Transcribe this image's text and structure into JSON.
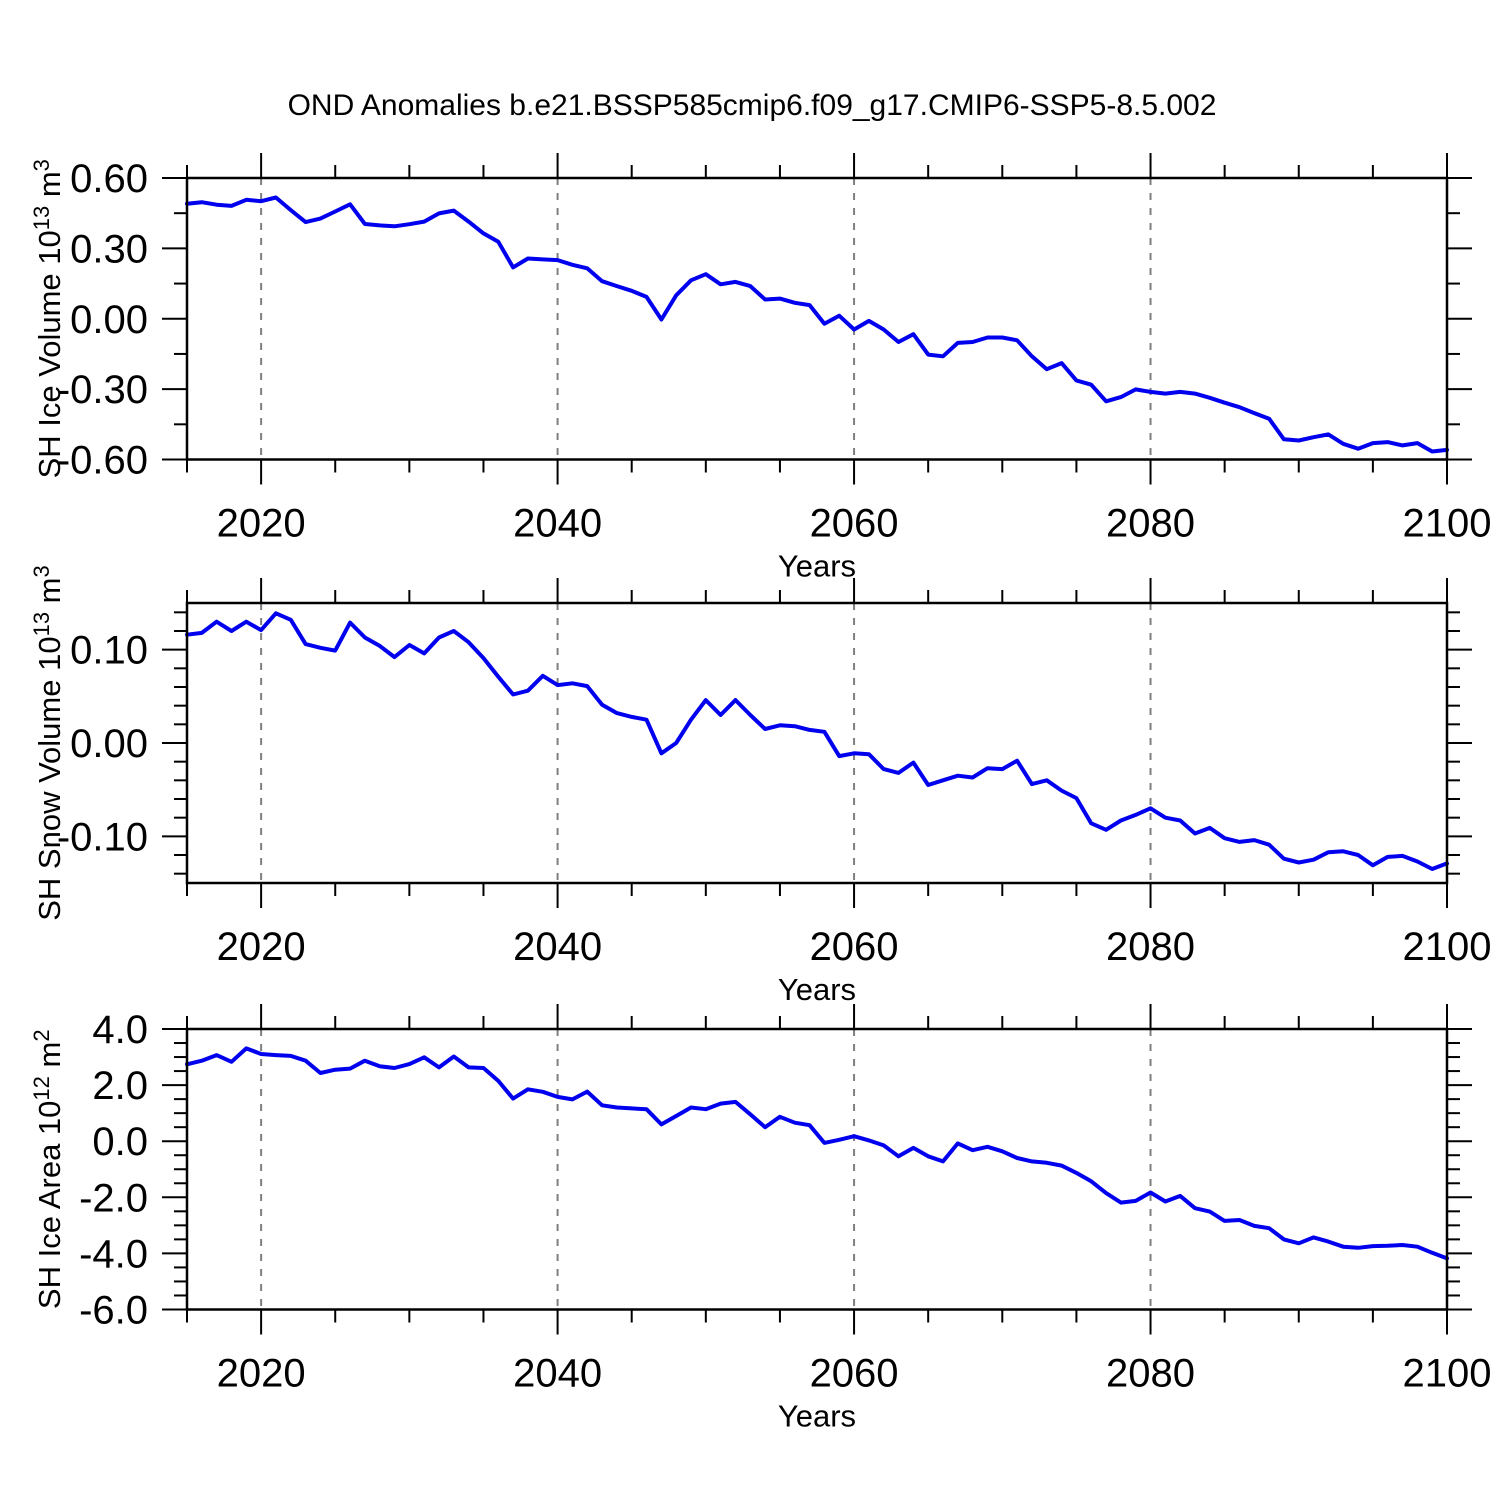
{
  "title": "OND Anomalies b.e21.BSSP585cmip6.f09_g17.CMIP6-SSP5-8.5.002",
  "style": {
    "line_color": "#0000ee",
    "grid_color": "#7f7f7f",
    "axis_color": "#000000",
    "background": "#ffffff"
  },
  "chart_data": {
    "type": "line",
    "title": "OND Anomalies b.e21.BSSP585cmip6.f09_g17.CMIP6-SSP5-8.5.002",
    "xlabel": "Years",
    "xlim": [
      2015,
      2100
    ],
    "x_major_ticks": [
      2020,
      2040,
      2060,
      2080,
      2100
    ],
    "x_tick_labels": [
      "2020",
      "2040",
      "2060",
      "2080",
      "2100"
    ],
    "x_minor_step": 5,
    "grid_x": [
      2020,
      2040,
      2060,
      2080
    ],
    "grid_style": "dashed-vertical",
    "legend": "none",
    "x": [
      2015,
      2016,
      2017,
      2018,
      2019,
      2020,
      2021,
      2022,
      2023,
      2024,
      2025,
      2026,
      2027,
      2028,
      2029,
      2030,
      2031,
      2032,
      2033,
      2034,
      2035,
      2036,
      2037,
      2038,
      2039,
      2040,
      2041,
      2042,
      2043,
      2044,
      2045,
      2046,
      2047,
      2048,
      2049,
      2050,
      2051,
      2052,
      2053,
      2054,
      2055,
      2056,
      2057,
      2058,
      2059,
      2060,
      2061,
      2062,
      2063,
      2064,
      2065,
      2066,
      2067,
      2068,
      2069,
      2070,
      2071,
      2072,
      2073,
      2074,
      2075,
      2076,
      2077,
      2078,
      2079,
      2080,
      2081,
      2082,
      2083,
      2084,
      2085,
      2086,
      2087,
      2088,
      2089,
      2090,
      2091,
      2092,
      2093,
      2094,
      2095,
      2096,
      2097,
      2098,
      2099,
      2100
    ],
    "panels": [
      {
        "name": "sh-ice-volume",
        "ylabel": "SH Ice Volume 10^13 m^3",
        "ylabel_parts": [
          {
            "text": "SH Ice Volume 10",
            "sup": "13"
          },
          {
            "text": " m",
            "sup": "3"
          }
        ],
        "ylim": [
          -0.6,
          0.6
        ],
        "ytick_values": [
          0.6,
          0.3,
          0.0,
          -0.3,
          -0.6
        ],
        "ytick_labels": [
          "0.60",
          "0.30",
          "0.00",
          "-0.30",
          "-0.60"
        ],
        "y_minor_step": 0.15,
        "values": [
          0.49,
          0.497,
          0.486,
          0.481,
          0.507,
          0.501,
          0.517,
          0.463,
          0.412,
          0.427,
          0.457,
          0.488,
          0.404,
          0.398,
          0.394,
          0.403,
          0.414,
          0.449,
          0.461,
          0.414,
          0.364,
          0.328,
          0.219,
          0.257,
          0.253,
          0.25,
          0.23,
          0.215,
          0.16,
          0.139,
          0.119,
          0.093,
          -0.003,
          0.1,
          0.164,
          0.19,
          0.147,
          0.157,
          0.139,
          0.082,
          0.086,
          0.068,
          0.058,
          -0.021,
          0.013,
          -0.046,
          -0.009,
          -0.046,
          -0.099,
          -0.066,
          -0.153,
          -0.16,
          -0.103,
          -0.099,
          -0.08,
          -0.08,
          -0.092,
          -0.16,
          -0.215,
          -0.189,
          -0.263,
          -0.281,
          -0.352,
          -0.334,
          -0.301,
          -0.312,
          -0.319,
          -0.312,
          -0.319,
          -0.337,
          -0.358,
          -0.377,
          -0.402,
          -0.426,
          -0.514,
          -0.519,
          -0.505,
          -0.493,
          -0.533,
          -0.554,
          -0.53,
          -0.526,
          -0.54,
          -0.53,
          -0.566,
          -0.559
        ]
      },
      {
        "name": "sh-snow-volume",
        "ylabel": "SH Snow Volume 10^13 m^3",
        "ylabel_parts": [
          {
            "text": "SH Snow Volume 10",
            "sup": "13"
          },
          {
            "text": " m",
            "sup": "3"
          }
        ],
        "ylim": [
          -0.15,
          0.15
        ],
        "ytick_values": [
          0.1,
          0.0,
          -0.1
        ],
        "ytick_labels": [
          "0.10",
          "0.00",
          "-0.10"
        ],
        "y_minor_step": 0.02,
        "values": [
          0.116,
          0.118,
          0.13,
          0.12,
          0.13,
          0.121,
          0.139,
          0.132,
          0.106,
          0.102,
          0.099,
          0.129,
          0.113,
          0.104,
          0.092,
          0.105,
          0.096,
          0.113,
          0.12,
          0.108,
          0.091,
          0.071,
          0.052,
          0.056,
          0.072,
          0.062,
          0.064,
          0.061,
          0.041,
          0.032,
          0.028,
          0.025,
          -0.011,
          0.0,
          0.025,
          0.046,
          0.03,
          0.046,
          0.03,
          0.015,
          0.019,
          0.018,
          0.014,
          0.012,
          -0.014,
          -0.011,
          -0.012,
          -0.028,
          -0.032,
          -0.021,
          -0.045,
          -0.04,
          -0.035,
          -0.037,
          -0.027,
          -0.028,
          -0.019,
          -0.044,
          -0.04,
          -0.051,
          -0.059,
          -0.086,
          -0.093,
          -0.083,
          -0.077,
          -0.07,
          -0.08,
          -0.083,
          -0.097,
          -0.091,
          -0.102,
          -0.106,
          -0.104,
          -0.109,
          -0.124,
          -0.128,
          -0.125,
          -0.117,
          -0.116,
          -0.12,
          -0.131,
          -0.122,
          -0.121,
          -0.127,
          -0.135,
          -0.129
        ]
      },
      {
        "name": "sh-ice-area",
        "ylabel": "SH Ice Area 10^12 m^2",
        "ylabel_parts": [
          {
            "text": "SH Ice Area 10",
            "sup": "12"
          },
          {
            "text": " m",
            "sup": "2"
          }
        ],
        "ylim": [
          -6.0,
          4.0
        ],
        "ytick_values": [
          4.0,
          2.0,
          0.0,
          -2.0,
          -4.0,
          -6.0
        ],
        "ytick_labels": [
          "4.0",
          "2.0",
          "0.0",
          "-2.0",
          "-4.0",
          "-6.0"
        ],
        "y_minor_step": 0.5,
        "values": [
          2.74,
          2.87,
          3.07,
          2.83,
          3.31,
          3.11,
          3.07,
          3.04,
          2.87,
          2.43,
          2.55,
          2.59,
          2.87,
          2.67,
          2.61,
          2.75,
          2.99,
          2.63,
          3.02,
          2.63,
          2.61,
          2.15,
          1.52,
          1.85,
          1.76,
          1.58,
          1.49,
          1.77,
          1.28,
          1.2,
          1.17,
          1.14,
          0.6,
          0.9,
          1.2,
          1.14,
          1.34,
          1.4,
          0.96,
          0.5,
          0.87,
          0.66,
          0.57,
          -0.06,
          0.05,
          0.18,
          0.03,
          -0.15,
          -0.54,
          -0.24,
          -0.54,
          -0.72,
          -0.08,
          -0.32,
          -0.2,
          -0.36,
          -0.6,
          -0.72,
          -0.77,
          -0.87,
          -1.13,
          -1.43,
          -1.85,
          -2.19,
          -2.13,
          -1.83,
          -2.15,
          -1.95,
          -2.39,
          -2.51,
          -2.84,
          -2.81,
          -3.02,
          -3.1,
          -3.5,
          -3.64,
          -3.43,
          -3.58,
          -3.76,
          -3.8,
          -3.74,
          -3.73,
          -3.7,
          -3.76,
          -3.98,
          -4.18
        ]
      }
    ]
  }
}
